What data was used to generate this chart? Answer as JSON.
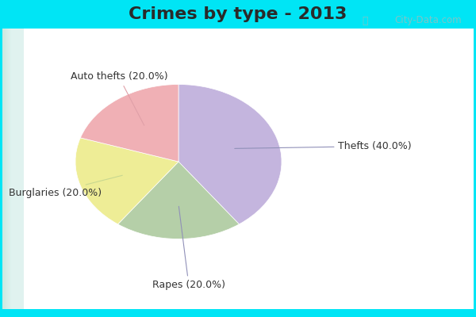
{
  "title": "Crimes by type - 2013",
  "values": [
    40.0,
    20.0,
    20.0,
    20.0
  ],
  "colors": [
    "#c4b5de",
    "#b5cfa8",
    "#eeed96",
    "#f0b0b5"
  ],
  "labels": [
    "Thefts (40.0%)",
    "Rapes (20.0%)",
    "Burglaries (20.0%)",
    "Auto thefts (20.0%)"
  ],
  "background_cyan": "#00e5f5",
  "background_mint_top": "#c8e8e0",
  "background_mint_bottom": "#d8eee5",
  "title_fontsize": 16,
  "label_fontsize": 9,
  "watermark": "City-Data.com",
  "startangle": 90,
  "title_color": "#2a2a2a",
  "label_color": "#333333",
  "cyan_bar_height": 0.09
}
